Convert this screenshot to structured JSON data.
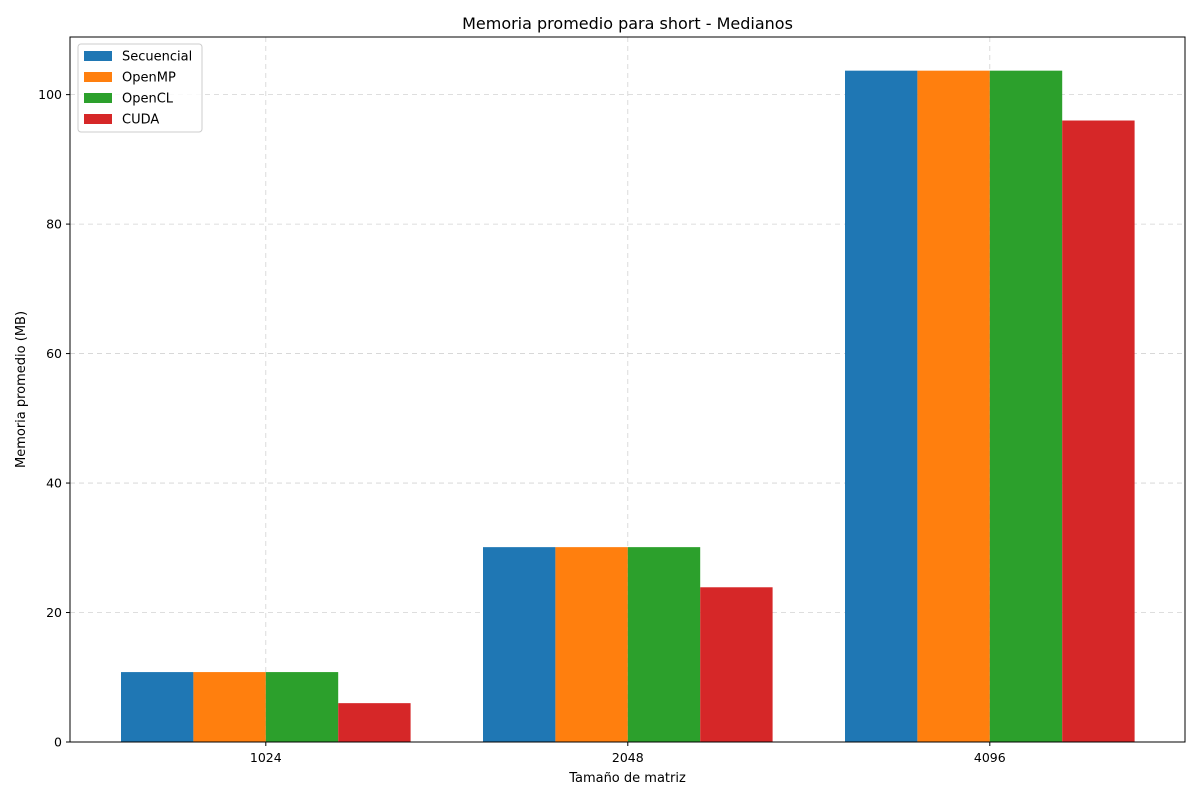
{
  "chart_data": {
    "type": "bar",
    "title": "Memoria promedio para short - Medianos",
    "xlabel": "Tamaño de matriz",
    "ylabel": "Memoria promedio (MB)",
    "categories": [
      "1024",
      "2048",
      "4096"
    ],
    "series": [
      {
        "name": "Secuencial",
        "color": "#1f77b4",
        "values": [
          10.8,
          30.1,
          103.7
        ]
      },
      {
        "name": "OpenMP",
        "color": "#ff7f0e",
        "values": [
          10.8,
          30.1,
          103.7
        ]
      },
      {
        "name": "OpenCL",
        "color": "#2ca02c",
        "values": [
          10.8,
          30.1,
          103.7
        ]
      },
      {
        "name": "CUDA",
        "color": "#d62728",
        "values": [
          6.0,
          23.9,
          96.0
        ]
      }
    ],
    "ylim": [
      0,
      108.9
    ],
    "yticks": [
      0,
      20,
      40,
      60,
      80,
      100
    ],
    "grid": true,
    "legend_position": "top-left"
  }
}
